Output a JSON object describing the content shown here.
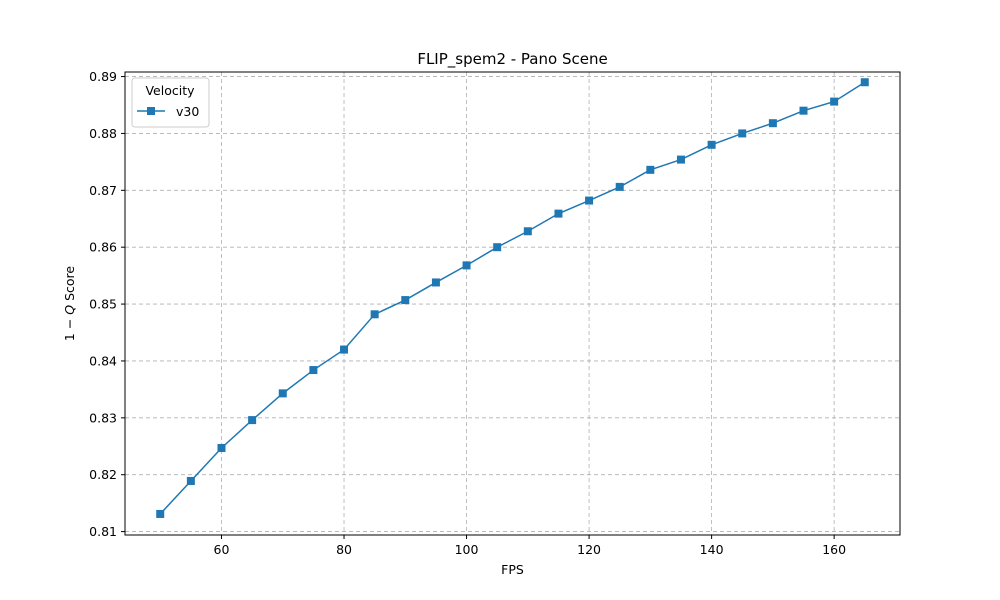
{
  "chart_data": {
    "type": "line",
    "title": "FLIP_spem2 - Pano Scene",
    "xlabel": "FPS",
    "ylabel_parts": {
      "prefix": "1 − ",
      "italic": "Q",
      "suffix": " Score"
    },
    "xlim": [
      44.25,
      170.75
    ],
    "ylim": [
      0.8094,
      0.8908
    ],
    "x_ticks": [
      60,
      80,
      100,
      120,
      140,
      160
    ],
    "y_ticks": [
      0.81,
      0.82,
      0.83,
      0.84,
      0.85,
      0.86,
      0.87,
      0.88,
      0.89
    ],
    "grid": true,
    "legend": {
      "title": "Velocity",
      "placement": "top-left"
    },
    "series": [
      {
        "name": "v30",
        "color": "#1f77b4",
        "marker": "square",
        "x": [
          50,
          55,
          60,
          65,
          70,
          75,
          80,
          85,
          90,
          95,
          100,
          105,
          110,
          115,
          120,
          125,
          130,
          135,
          140,
          145,
          150,
          155,
          160,
          165
        ],
        "y": [
          0.8131,
          0.8189,
          0.8247,
          0.8296,
          0.8343,
          0.8384,
          0.842,
          0.8482,
          0.8507,
          0.8538,
          0.8568,
          0.86,
          0.8628,
          0.8659,
          0.8682,
          0.8706,
          0.8736,
          0.8754,
          0.878,
          0.88,
          0.8818,
          0.884,
          0.8856,
          0.889
        ]
      }
    ]
  }
}
